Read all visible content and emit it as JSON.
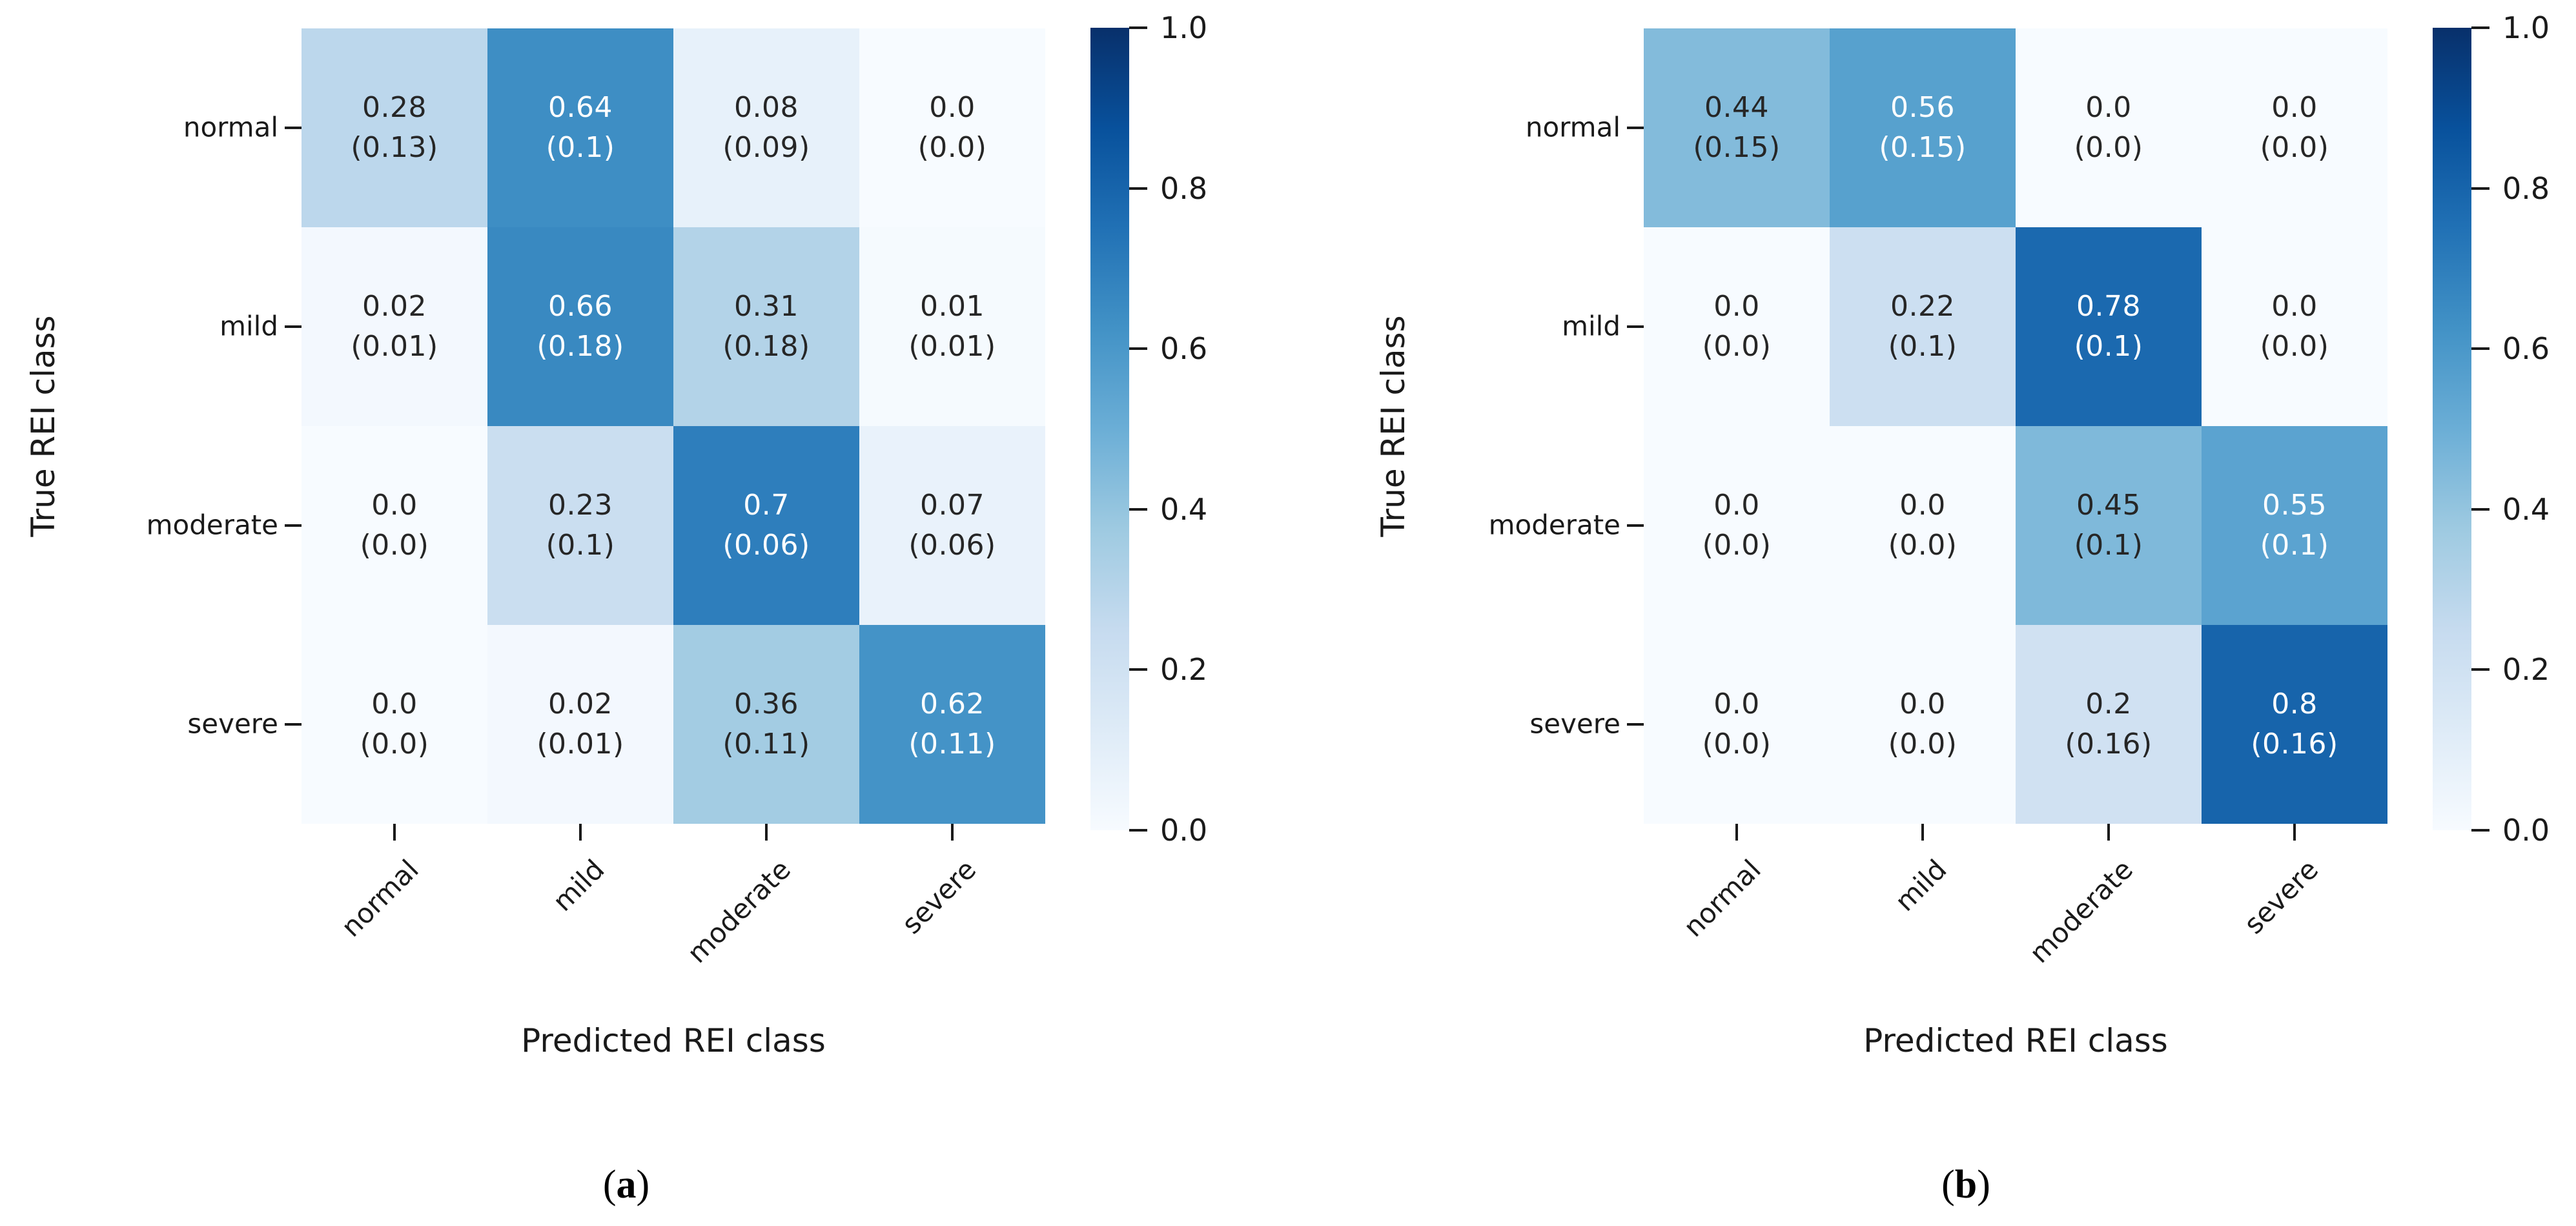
{
  "figure": {
    "background_color": "#ffffff",
    "tick_color": "#1a1a1a",
    "dark_text_color": "#262626",
    "light_text_color": "#ffffff",
    "colormap_anchors": [
      "#f7fbff",
      "#deebf7",
      "#c6dbef",
      "#9ecae1",
      "#6baed6",
      "#4292c6",
      "#2171b5",
      "#08519c",
      "#08306b"
    ]
  },
  "chart_data": [
    {
      "type": "heatmap",
      "panel": "a",
      "caption": {
        "open": "(",
        "letter": "a",
        "close": ")"
      },
      "xlabel": "Predicted REI class",
      "ylabel": "True REI class",
      "x_categories": [
        "normal",
        "mild",
        "moderate",
        "severe"
      ],
      "y_categories": [
        "normal",
        "mild",
        "moderate",
        "severe"
      ],
      "colormap": "Blues",
      "vmin": 0.0,
      "vmax": 1.0,
      "values": [
        [
          0.28,
          0.64,
          0.08,
          0.0
        ],
        [
          0.02,
          0.66,
          0.31,
          0.01
        ],
        [
          0.0,
          0.23,
          0.7,
          0.07
        ],
        [
          0.0,
          0.02,
          0.36,
          0.62
        ]
      ],
      "value_labels": [
        [
          "0.28",
          "0.64",
          "0.08",
          "0.0"
        ],
        [
          "0.02",
          "0.66",
          "0.31",
          "0.01"
        ],
        [
          "0.0",
          "0.23",
          "0.7",
          "0.07"
        ],
        [
          "0.0",
          "0.02",
          "0.36",
          "0.62"
        ]
      ],
      "share_labels": [
        [
          "(0.13)",
          "(0.1)",
          "(0.09)",
          "(0.0)"
        ],
        [
          "(0.01)",
          "(0.18)",
          "(0.18)",
          "(0.01)"
        ],
        [
          "(0.0)",
          "(0.1)",
          "(0.06)",
          "(0.06)"
        ],
        [
          "(0.0)",
          "(0.01)",
          "(0.11)",
          "(0.11)"
        ]
      ],
      "colorbar_ticks": [
        {
          "v": 1.0,
          "label": "1.0"
        },
        {
          "v": 0.8,
          "label": "0.8"
        },
        {
          "v": 0.6,
          "label": "0.6"
        },
        {
          "v": 0.4,
          "label": "0.4"
        },
        {
          "v": 0.2,
          "label": "0.2"
        },
        {
          "v": 0.0,
          "label": "0.0"
        }
      ]
    },
    {
      "type": "heatmap",
      "panel": "b",
      "caption": {
        "open": "(",
        "letter": "b",
        "close": ")"
      },
      "xlabel": "Predicted REI class",
      "ylabel": "True REI class",
      "x_categories": [
        "normal",
        "mild",
        "moderate",
        "severe"
      ],
      "y_categories": [
        "normal",
        "mild",
        "moderate",
        "severe"
      ],
      "colormap": "Blues",
      "vmin": 0.0,
      "vmax": 1.0,
      "values": [
        [
          0.44,
          0.56,
          0.0,
          0.0
        ],
        [
          0.0,
          0.22,
          0.78,
          0.0
        ],
        [
          0.0,
          0.0,
          0.45,
          0.55
        ],
        [
          0.0,
          0.0,
          0.2,
          0.8
        ]
      ],
      "value_labels": [
        [
          "0.44",
          "0.56",
          "0.0",
          "0.0"
        ],
        [
          "0.0",
          "0.22",
          "0.78",
          "0.0"
        ],
        [
          "0.0",
          "0.0",
          "0.45",
          "0.55"
        ],
        [
          "0.0",
          "0.0",
          "0.2",
          "0.8"
        ]
      ],
      "share_labels": [
        [
          "(0.15)",
          "(0.15)",
          "(0.0)",
          "(0.0)"
        ],
        [
          "(0.0)",
          "(0.1)",
          "(0.1)",
          "(0.0)"
        ],
        [
          "(0.0)",
          "(0.0)",
          "(0.1)",
          "(0.1)"
        ],
        [
          "(0.0)",
          "(0.0)",
          "(0.16)",
          "(0.16)"
        ]
      ],
      "colorbar_ticks": [
        {
          "v": 1.0,
          "label": "1.0"
        },
        {
          "v": 0.8,
          "label": "0.8"
        },
        {
          "v": 0.6,
          "label": "0.6"
        },
        {
          "v": 0.4,
          "label": "0.4"
        },
        {
          "v": 0.2,
          "label": "0.2"
        },
        {
          "v": 0.0,
          "label": "0.0"
        }
      ]
    }
  ]
}
